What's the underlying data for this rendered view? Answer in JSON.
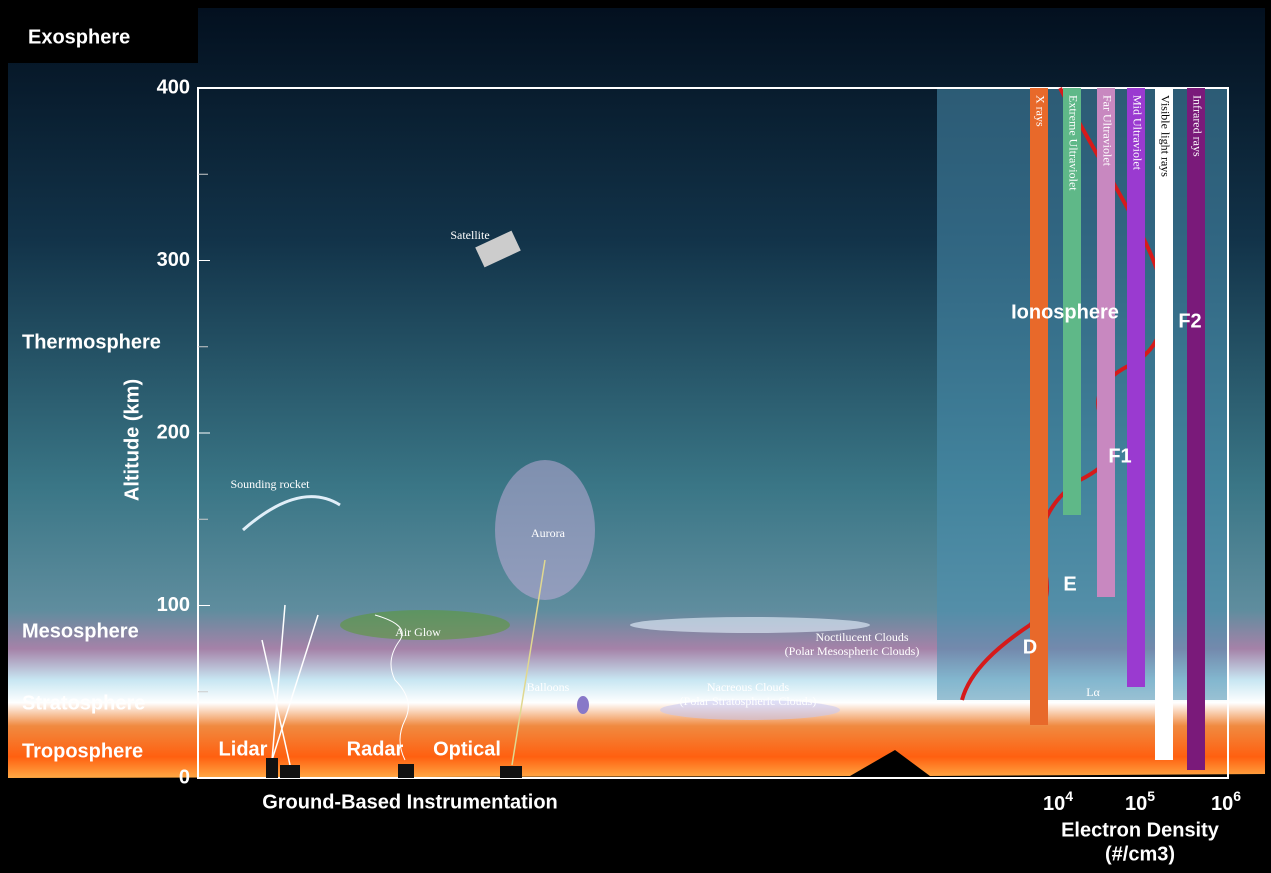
{
  "layers": [
    "Exosphere",
    "Thermosphere",
    "Mesosphere",
    "Stratosphere",
    "Troposphere"
  ],
  "altitude_axis": {
    "label": "Altitude (km)",
    "ticks": [
      0,
      100,
      200,
      300,
      400
    ]
  },
  "ground_label": "Ground-Based Instrumentation",
  "instruments": [
    "Lidar",
    "Radar",
    "Optical"
  ],
  "phenomena": {
    "satellite": "Satellite",
    "rocket": "Sounding rocket",
    "aurora": "Aurora",
    "airglow": "Air Glow",
    "balloons": "Balloons",
    "noctilucent": [
      "Noctilucent Clouds",
      "(Polar Mesospheric Clouds)"
    ],
    "nacreous": [
      "Nacreous Clouds",
      "(Polar Stratospheric Clouds)"
    ]
  },
  "ionosphere": {
    "label": "Ionosphere",
    "regions": [
      "F2",
      "F1",
      "E",
      "D"
    ],
    "lyman": "Lα",
    "spectrum": [
      "X rays",
      "Extreme Ultraviolet",
      "Far Ultraviolet",
      "Mid Ultraviolet",
      "Visible light rays",
      "Infrared rays"
    ]
  },
  "density_axis": {
    "label": [
      "Electron Density",
      "(#/cm3)"
    ],
    "ticks": [
      {
        "base": "10",
        "exp": "4"
      },
      {
        "base": "10",
        "exp": "5"
      },
      {
        "base": "10",
        "exp": "6"
      }
    ]
  }
}
